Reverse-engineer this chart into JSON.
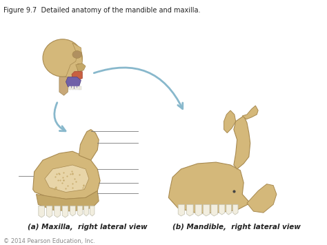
{
  "title": "Figure 9.7  Detailed anatomy of the mandible and maxilla.",
  "label_a": "(a) Maxilla,  right lateral view",
  "label_b": "(b) Mandible,  right lateral view",
  "copyright": "© 2014 Pearson Education, Inc.",
  "bg_color": "#ffffff",
  "title_fontsize": 7.0,
  "label_fontsize": 7.5,
  "copyright_fontsize": 6.0,
  "bone_color": "#d4b87a",
  "bone_light": "#e8d5a8",
  "bone_dark": "#a88a50",
  "bone_mid": "#c4a868",
  "skull_skin": "#d4b87a",
  "arrow_color": "#88b8cc",
  "line_color": "#777777",
  "tooth_color": "#f2eedf",
  "text_color": "#222222",
  "maxilla_red": "#c86040",
  "mandible_purple": "#7060a8"
}
